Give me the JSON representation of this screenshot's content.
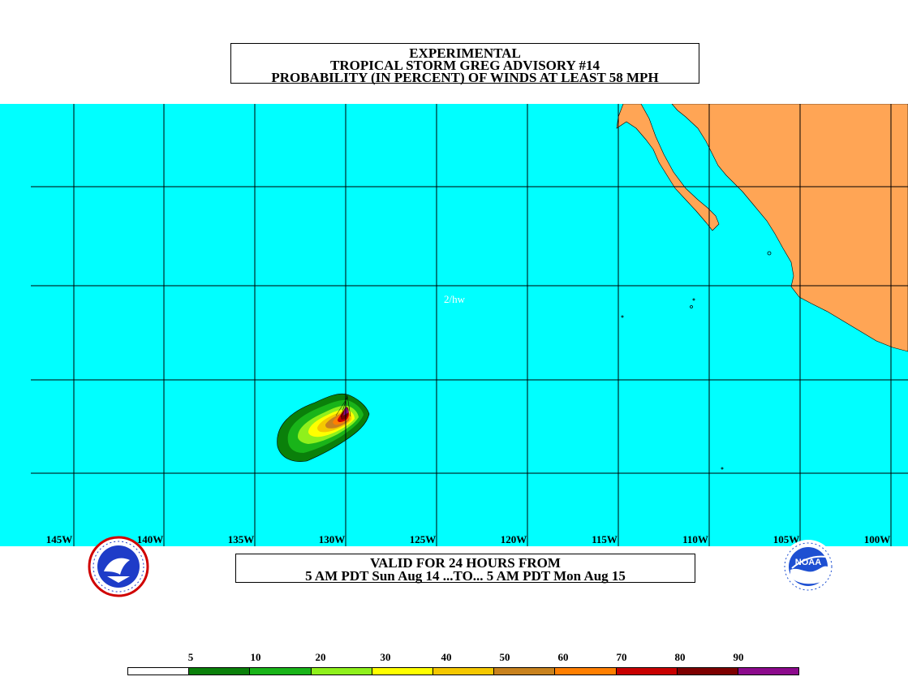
{
  "title": {
    "line1": "EXPERIMENTAL",
    "line2": "TROPICAL STORM GREG ADVISORY #14",
    "line3": "PROBABILITY (IN PERCENT) OF WINDS AT LEAST 58 MPH"
  },
  "valid": {
    "line1": "VALID FOR 24 HOURS FROM",
    "line2": "5 AM PDT Sun Aug 14 ...TO... 5 AM PDT Mon Aug 15"
  },
  "map_annotation": "2/hw",
  "longitudes": [
    "145W",
    "140W",
    "135W",
    "130W",
    "125W",
    "120W",
    "115W",
    "110W",
    "105W",
    "100W"
  ],
  "legend": {
    "labels": [
      "5",
      "10",
      "20",
      "30",
      "40",
      "50",
      "60",
      "70",
      "80",
      "90"
    ],
    "colors": [
      "#ffffff",
      "#0a800a",
      "#19b419",
      "#8ff01c",
      "#ffff00",
      "#f5c800",
      "#c8821e",
      "#ff7f00",
      "#c80000",
      "#7d0000",
      "#8c0a8c"
    ]
  },
  "colors": {
    "ocean": "#00ffff",
    "land": "#ffa555",
    "grid": "#000000"
  },
  "logos": {
    "left": "nws-logo",
    "right": "noaa-logo",
    "right_text": "NOAA"
  }
}
